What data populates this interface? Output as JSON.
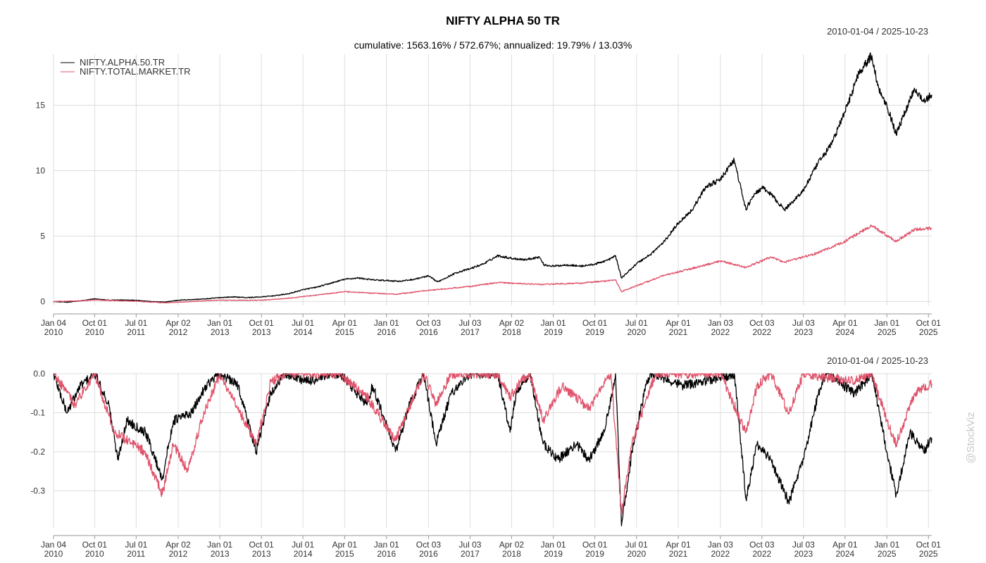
{
  "chart_data": [
    {
      "type": "line",
      "title": "NIFTY ALPHA 50 TR",
      "subtitle": "cumulative: 1563.16% / 572.67%; annualized: 19.79% / 13.03%",
      "date_range": "2010-01-04 / 2025-10-23",
      "xlabel": "",
      "ylabel": "",
      "xlim": [
        "2010-01-04",
        "2025-10-23"
      ],
      "ylim": [
        -0.3,
        18.9
      ],
      "yticks": [
        0,
        5,
        10,
        15
      ],
      "ytick_labels": [
        "0",
        "5",
        "10",
        "15"
      ],
      "grid": true,
      "legend_position": "top-left",
      "x_tick_labels": [
        {
          "d": "2010-01-04",
          "l1": "Jan 04",
          "l2": "2010"
        },
        {
          "d": "2010-10-01",
          "l1": "Oct 01",
          "l2": "2010"
        },
        {
          "d": "2011-07-01",
          "l1": "Jul 01",
          "l2": "2011"
        },
        {
          "d": "2012-04-02",
          "l1": "Apr 02",
          "l2": "2012"
        },
        {
          "d": "2013-01-01",
          "l1": "Jan 01",
          "l2": "2013"
        },
        {
          "d": "2013-10-01",
          "l1": "Oct 01",
          "l2": "2013"
        },
        {
          "d": "2014-07-01",
          "l1": "Jul 01",
          "l2": "2014"
        },
        {
          "d": "2015-04-01",
          "l1": "Apr 01",
          "l2": "2015"
        },
        {
          "d": "2016-01-01",
          "l1": "Jan 01",
          "l2": "2016"
        },
        {
          "d": "2016-10-03",
          "l1": "Oct 03",
          "l2": "2016"
        },
        {
          "d": "2017-07-03",
          "l1": "Jul 03",
          "l2": "2017"
        },
        {
          "d": "2018-04-02",
          "l1": "Apr 02",
          "l2": "2018"
        },
        {
          "d": "2019-01-01",
          "l1": "Jan 01",
          "l2": "2019"
        },
        {
          "d": "2019-10-01",
          "l1": "Oct 01",
          "l2": "2019"
        },
        {
          "d": "2020-07-01",
          "l1": "Jul 01",
          "l2": "2020"
        },
        {
          "d": "2021-04-01",
          "l1": "Apr 01",
          "l2": "2021"
        },
        {
          "d": "2022-01-03",
          "l1": "Jan 03",
          "l2": "2022"
        },
        {
          "d": "2022-10-03",
          "l1": "Oct 03",
          "l2": "2022"
        },
        {
          "d": "2023-07-03",
          "l1": "Jul 03",
          "l2": "2023"
        },
        {
          "d": "2024-04-01",
          "l1": "Apr 01",
          "l2": "2024"
        },
        {
          "d": "2025-01-01",
          "l1": "Jan 01",
          "l2": "2025"
        },
        {
          "d": "2025-10-01",
          "l1": "Oct 01",
          "l2": "2025"
        }
      ],
      "series": [
        {
          "name": "NIFTY.ALPHA.50.TR",
          "color": "#000000",
          "points": [
            [
              "2010-01-04",
              0.0
            ],
            [
              "2010-04-01",
              -0.05
            ],
            [
              "2010-07-01",
              0.05
            ],
            [
              "2010-10-01",
              0.2
            ],
            [
              "2011-01-03",
              0.1
            ],
            [
              "2011-04-01",
              0.12
            ],
            [
              "2011-07-01",
              0.1
            ],
            [
              "2011-10-03",
              0.0
            ],
            [
              "2012-01-02",
              -0.05
            ],
            [
              "2012-04-02",
              0.1
            ],
            [
              "2012-07-02",
              0.15
            ],
            [
              "2012-10-01",
              0.2
            ],
            [
              "2013-01-01",
              0.3
            ],
            [
              "2013-04-01",
              0.35
            ],
            [
              "2013-07-01",
              0.3
            ],
            [
              "2013-10-01",
              0.35
            ],
            [
              "2014-01-01",
              0.45
            ],
            [
              "2014-04-01",
              0.6
            ],
            [
              "2014-07-01",
              0.9
            ],
            [
              "2014-10-01",
              1.1
            ],
            [
              "2015-01-01",
              1.4
            ],
            [
              "2015-04-01",
              1.7
            ],
            [
              "2015-07-01",
              1.8
            ],
            [
              "2015-10-01",
              1.65
            ],
            [
              "2016-01-01",
              1.6
            ],
            [
              "2016-04-01",
              1.55
            ],
            [
              "2016-07-01",
              1.7
            ],
            [
              "2016-10-03",
              1.95
            ],
            [
              "2016-12-01",
              1.5
            ],
            [
              "2017-04-03",
              2.2
            ],
            [
              "2017-07-03",
              2.5
            ],
            [
              "2017-10-03",
              2.9
            ],
            [
              "2018-01-01",
              3.5
            ],
            [
              "2018-04-02",
              3.3
            ],
            [
              "2018-07-02",
              3.2
            ],
            [
              "2018-10-01",
              3.4
            ],
            [
              "2018-11-01",
              2.8
            ],
            [
              "2019-01-01",
              2.7
            ],
            [
              "2019-04-01",
              2.8
            ],
            [
              "2019-07-01",
              2.7
            ],
            [
              "2019-10-01",
              2.85
            ],
            [
              "2020-01-01",
              3.2
            ],
            [
              "2020-02-14",
              3.5
            ],
            [
              "2020-03-24",
              1.8
            ],
            [
              "2020-05-01",
              2.2
            ],
            [
              "2020-07-01",
              2.9
            ],
            [
              "2020-10-01",
              3.6
            ],
            [
              "2021-01-01",
              4.6
            ],
            [
              "2021-04-01",
              6.0
            ],
            [
              "2021-07-01",
              7.0
            ],
            [
              "2021-10-01",
              8.8
            ],
            [
              "2022-01-03",
              9.3
            ],
            [
              "2022-03-01",
              10.3
            ],
            [
              "2022-04-04",
              10.8
            ],
            [
              "2022-06-20",
              7.0
            ],
            [
              "2022-08-01",
              8.0
            ],
            [
              "2022-10-03",
              8.7
            ],
            [
              "2022-12-01",
              8.2
            ],
            [
              "2023-03-01",
              7.0
            ],
            [
              "2023-04-03",
              7.4
            ],
            [
              "2023-07-03",
              8.5
            ],
            [
              "2023-10-03",
              10.5
            ],
            [
              "2024-01-01",
              12.0
            ],
            [
              "2024-04-01",
              14.5
            ],
            [
              "2024-07-01",
              17.5
            ],
            [
              "2024-09-24",
              18.8
            ],
            [
              "2024-11-01",
              16.5
            ],
            [
              "2025-01-01",
              15.0
            ],
            [
              "2025-03-03",
              12.8
            ],
            [
              "2025-05-01",
              14.5
            ],
            [
              "2025-07-01",
              16.3
            ],
            [
              "2025-09-01",
              15.3
            ],
            [
              "2025-10-23",
              15.8
            ]
          ]
        },
        {
          "name": "NIFTY.TOTAL.MARKET.TR",
          "color": "#df536b",
          "points": [
            [
              "2010-01-04",
              0.0
            ],
            [
              "2010-07-01",
              0.05
            ],
            [
              "2010-10-01",
              0.12
            ],
            [
              "2011-07-01",
              0.02
            ],
            [
              "2012-01-02",
              -0.1
            ],
            [
              "2012-07-02",
              0.0
            ],
            [
              "2013-01-01",
              0.1
            ],
            [
              "2013-10-01",
              0.1
            ],
            [
              "2014-04-01",
              0.25
            ],
            [
              "2014-10-01",
              0.5
            ],
            [
              "2015-04-01",
              0.75
            ],
            [
              "2016-02-29",
              0.55
            ],
            [
              "2016-10-03",
              0.85
            ],
            [
              "2017-07-03",
              1.15
            ],
            [
              "2018-01-01",
              1.45
            ],
            [
              "2018-10-01",
              1.3
            ],
            [
              "2019-07-01",
              1.4
            ],
            [
              "2020-01-01",
              1.6
            ],
            [
              "2020-02-14",
              1.65
            ],
            [
              "2020-03-24",
              0.75
            ],
            [
              "2020-07-01",
              1.2
            ],
            [
              "2021-01-01",
              2.0
            ],
            [
              "2021-10-01",
              2.8
            ],
            [
              "2022-01-03",
              3.1
            ],
            [
              "2022-06-20",
              2.6
            ],
            [
              "2022-12-01",
              3.4
            ],
            [
              "2023-03-01",
              3.0
            ],
            [
              "2023-10-03",
              3.7
            ],
            [
              "2024-04-01",
              4.6
            ],
            [
              "2024-09-24",
              5.8
            ],
            [
              "2025-03-03",
              4.6
            ],
            [
              "2025-07-01",
              5.5
            ],
            [
              "2025-10-23",
              5.6
            ]
          ]
        }
      ]
    },
    {
      "type": "line",
      "title": "",
      "date_range": "2010-01-04 / 2025-10-23",
      "xlabel": "",
      "ylabel": "",
      "xlim": [
        "2010-01-04",
        "2025-10-23"
      ],
      "ylim": [
        -0.395,
        0.0
      ],
      "yticks": [
        0.0,
        -0.1,
        -0.2,
        -0.3
      ],
      "ytick_labels": [
        "0.0",
        "-0.1",
        "-0.2",
        "-0.3"
      ],
      "grid": true,
      "series": [
        {
          "name": "NIFTY.ALPHA.50.TR",
          "color": "#000000",
          "points": [
            [
              "2010-01-04",
              0.0
            ],
            [
              "2010-04-01",
              -0.1
            ],
            [
              "2010-07-01",
              -0.03
            ],
            [
              "2010-10-01",
              0.0
            ],
            [
              "2011-01-03",
              -0.08
            ],
            [
              "2011-03-01",
              -0.22
            ],
            [
              "2011-05-02",
              -0.12
            ],
            [
              "2011-09-01",
              -0.15
            ],
            [
              "2011-12-20",
              -0.27
            ],
            [
              "2012-03-01",
              -0.12
            ],
            [
              "2012-07-02",
              -0.1
            ],
            [
              "2012-10-01",
              -0.03
            ],
            [
              "2013-01-01",
              0.0
            ],
            [
              "2013-05-01",
              -0.03
            ],
            [
              "2013-08-28",
              -0.2
            ],
            [
              "2013-12-02",
              -0.05
            ],
            [
              "2014-03-03",
              0.0
            ],
            [
              "2014-08-01",
              -0.02
            ],
            [
              "2015-03-02",
              0.0
            ],
            [
              "2015-08-26",
              -0.08
            ],
            [
              "2015-10-01",
              -0.03
            ],
            [
              "2016-02-29",
              -0.2
            ],
            [
              "2016-06-01",
              -0.08
            ],
            [
              "2016-09-01",
              0.0
            ],
            [
              "2016-11-22",
              -0.18
            ],
            [
              "2017-03-01",
              -0.05
            ],
            [
              "2017-07-03",
              0.0
            ],
            [
              "2018-01-01",
              0.0
            ],
            [
              "2018-03-23",
              -0.15
            ],
            [
              "2018-05-01",
              -0.05
            ],
            [
              "2018-08-01",
              0.0
            ],
            [
              "2018-10-26",
              -0.18
            ],
            [
              "2019-02-01",
              -0.22
            ],
            [
              "2019-06-01",
              -0.18
            ],
            [
              "2019-08-23",
              -0.22
            ],
            [
              "2019-12-01",
              -0.15
            ],
            [
              "2020-02-14",
              0.0
            ],
            [
              "2020-03-24",
              -0.39
            ],
            [
              "2020-06-01",
              -0.2
            ],
            [
              "2020-09-01",
              -0.03
            ],
            [
              "2020-10-01",
              0.0
            ],
            [
              "2021-05-03",
              -0.03
            ],
            [
              "2022-01-03",
              -0.01
            ],
            [
              "2022-04-04",
              0.0
            ],
            [
              "2022-06-20",
              -0.32
            ],
            [
              "2022-09-01",
              -0.18
            ],
            [
              "2022-12-01",
              -0.22
            ],
            [
              "2023-03-28",
              -0.33
            ],
            [
              "2023-07-03",
              -0.22
            ],
            [
              "2023-10-03",
              -0.06
            ],
            [
              "2023-12-01",
              0.0
            ],
            [
              "2024-06-04",
              -0.05
            ],
            [
              "2024-09-24",
              0.0
            ],
            [
              "2025-01-01",
              -0.2
            ],
            [
              "2025-03-03",
              -0.31
            ],
            [
              "2025-06-02",
              -0.15
            ],
            [
              "2025-09-01",
              -0.2
            ],
            [
              "2025-10-23",
              -0.165
            ]
          ]
        },
        {
          "name": "NIFTY.TOTAL.MARKET.TR",
          "color": "#df536b",
          "points": [
            [
              "2010-01-04",
              0.0
            ],
            [
              "2010-05-25",
              -0.08
            ],
            [
              "2010-10-01",
              0.0
            ],
            [
              "2011-02-10",
              -0.15
            ],
            [
              "2011-08-26",
              -0.2
            ],
            [
              "2011-12-20",
              -0.31
            ],
            [
              "2012-03-01",
              -0.18
            ],
            [
              "2012-06-04",
              -0.25
            ],
            [
              "2012-09-03",
              -0.12
            ],
            [
              "2013-01-01",
              0.0
            ],
            [
              "2013-08-28",
              -0.18
            ],
            [
              "2013-12-02",
              -0.02
            ],
            [
              "2014-03-03",
              0.0
            ],
            [
              "2015-03-02",
              0.0
            ],
            [
              "2015-08-26",
              -0.06
            ],
            [
              "2016-02-29",
              -0.17
            ],
            [
              "2016-09-01",
              0.0
            ],
            [
              "2016-11-22",
              -0.08
            ],
            [
              "2017-03-01",
              0.0
            ],
            [
              "2018-01-01",
              0.0
            ],
            [
              "2018-03-23",
              -0.06
            ],
            [
              "2018-06-01",
              -0.02
            ],
            [
              "2018-08-01",
              0.0
            ],
            [
              "2018-10-26",
              -0.12
            ],
            [
              "2019-03-01",
              -0.03
            ],
            [
              "2019-08-23",
              -0.09
            ],
            [
              "2019-12-01",
              -0.02
            ],
            [
              "2020-01-15",
              0.0
            ],
            [
              "2020-03-24",
              -0.36
            ],
            [
              "2020-06-01",
              -0.18
            ],
            [
              "2020-11-02",
              0.0
            ],
            [
              "2021-05-03",
              0.0
            ],
            [
              "2022-01-03",
              0.0
            ],
            [
              "2022-06-20",
              -0.15
            ],
            [
              "2022-09-01",
              -0.03
            ],
            [
              "2022-12-01",
              0.0
            ],
            [
              "2023-03-28",
              -0.1
            ],
            [
              "2023-07-03",
              0.0
            ],
            [
              "2024-06-04",
              -0.02
            ],
            [
              "2024-09-24",
              0.0
            ],
            [
              "2025-01-01",
              -0.12
            ],
            [
              "2025-03-03",
              -0.18
            ],
            [
              "2025-07-01",
              -0.05
            ],
            [
              "2025-10-23",
              -0.025
            ]
          ]
        }
      ]
    }
  ],
  "watermark": "@StockViz"
}
